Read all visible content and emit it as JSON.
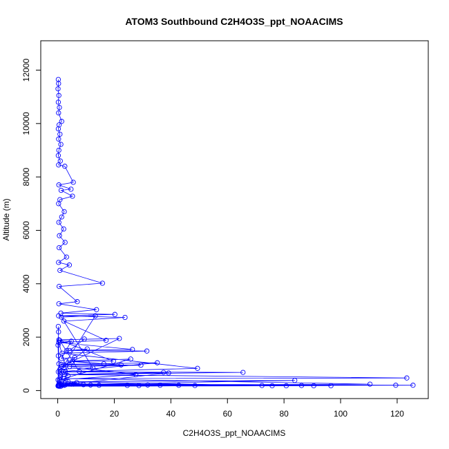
{
  "chart_data": {
    "type": "line",
    "title": "ATOM3 Southbound C2H4O3S_ppt_NOAACIMS",
    "xlabel": "C2H4O3S_ppt_NOAACIMS",
    "ylabel": "Altitude (m)",
    "xlim": [
      -6,
      131
    ],
    "ylim": [
      -300,
      13100
    ],
    "xticks": [
      0,
      20,
      40,
      60,
      80,
      100,
      120
    ],
    "yticks": [
      0,
      2000,
      4000,
      6000,
      8000,
      10000,
      12000
    ],
    "grid": false,
    "legend": "none",
    "series_color": "#0000ff",
    "marker": "open-circle",
    "series": [
      {
        "name": "",
        "points": [
          [
            0.2,
            11650
          ],
          [
            0.3,
            11500
          ],
          [
            0.1,
            11300
          ],
          [
            0.4,
            11050
          ],
          [
            0.2,
            10800
          ],
          [
            0.6,
            10600
          ],
          [
            0.3,
            10400
          ],
          [
            1.4,
            10080
          ],
          [
            0.5,
            9950
          ],
          [
            0.2,
            9800
          ],
          [
            0.8,
            9600
          ],
          [
            0.3,
            9420
          ],
          [
            1.1,
            9220
          ],
          [
            0.4,
            9000
          ],
          [
            0.2,
            8800
          ],
          [
            0.9,
            8600
          ],
          [
            0.3,
            8450
          ],
          [
            2.5,
            8400
          ],
          [
            5.5,
            7800
          ],
          [
            0.4,
            7700
          ],
          [
            4.7,
            7540
          ],
          [
            1.2,
            7500
          ],
          [
            5.2,
            7280
          ],
          [
            0.8,
            7150
          ],
          [
            0.3,
            7000
          ],
          [
            2.3,
            6700
          ],
          [
            1.4,
            6500
          ],
          [
            0.4,
            6300
          ],
          [
            2.1,
            6050
          ],
          [
            0.6,
            5800
          ],
          [
            2.6,
            5550
          ],
          [
            0.5,
            5350
          ],
          [
            3.1,
            5000
          ],
          [
            0.3,
            4800
          ],
          [
            4.1,
            4700
          ],
          [
            0.8,
            4500
          ],
          [
            15.8,
            4020
          ],
          [
            0.5,
            3900
          ],
          [
            6.9,
            3330
          ],
          [
            0.4,
            3250
          ],
          [
            13.7,
            3030
          ],
          [
            1.1,
            2900
          ],
          [
            20.2,
            2850
          ],
          [
            0.3,
            2800
          ],
          [
            23.8,
            2740
          ],
          [
            2.2,
            2600
          ],
          [
            17.1,
            1880
          ],
          [
            0.4,
            1800
          ],
          [
            26.4,
            1540
          ],
          [
            3.2,
            1500
          ],
          [
            31.5,
            1480
          ],
          [
            1.6,
            1400
          ],
          [
            49.4,
            830
          ],
          [
            0.8,
            700
          ],
          [
            65.5,
            680
          ],
          [
            2.4,
            600
          ],
          [
            123.4,
            470
          ],
          [
            2.1,
            450
          ],
          [
            110.4,
            240
          ],
          [
            1.5,
            200
          ],
          [
            119.5,
            200
          ],
          [
            0.7,
            180
          ],
          [
            125.6,
            200
          ],
          [
            3.4,
            250
          ],
          [
            80.8,
            180
          ],
          [
            1.1,
            160
          ],
          [
            96.6,
            180
          ],
          [
            2.6,
            210
          ],
          [
            90.5,
            180
          ],
          [
            4.8,
            240
          ],
          [
            86.2,
            190
          ],
          [
            1.9,
            220
          ],
          [
            83.8,
            380
          ],
          [
            3.7,
            330
          ],
          [
            75.8,
            180
          ],
          [
            0.5,
            160
          ],
          [
            72.2,
            190
          ],
          [
            5.6,
            240
          ],
          [
            48.5,
            190
          ],
          [
            2.3,
            200
          ],
          [
            42.8,
            200
          ],
          [
            1.2,
            210
          ],
          [
            39.2,
            660
          ],
          [
            0.9,
            600
          ],
          [
            37.4,
            680
          ],
          [
            2.7,
            720
          ],
          [
            35.2,
            1040
          ],
          [
            1.3,
            980
          ],
          [
            29.4,
            950
          ],
          [
            4.2,
            900
          ],
          [
            27.6,
            600
          ],
          [
            0.6,
            400
          ],
          [
            25.8,
            1180
          ],
          [
            3.0,
            1100
          ],
          [
            22.4,
            960
          ],
          [
            1.4,
            900
          ],
          [
            21.8,
            1950
          ],
          [
            0.4,
            1900
          ],
          [
            19.7,
            1100
          ],
          [
            5.2,
            1100
          ],
          [
            16.3,
            1000
          ],
          [
            2.2,
            950
          ],
          [
            13.3,
            2800
          ],
          [
            1.3,
            2750
          ],
          [
            12.4,
            850
          ],
          [
            0.8,
            800
          ],
          [
            10.4,
            1560
          ],
          [
            4.2,
            1500
          ],
          [
            9.4,
            1930
          ],
          [
            0.7,
            1880
          ],
          [
            7.6,
            720
          ],
          [
            2.0,
            700
          ],
          [
            6.0,
            1240
          ],
          [
            1.3,
            1200
          ],
          [
            4.8,
            1850
          ],
          [
            0.4,
            1800
          ],
          [
            3.6,
            560
          ],
          [
            0.9,
            500
          ],
          [
            2.8,
            360
          ],
          [
            0.5,
            300
          ],
          [
            14.6,
            200
          ],
          [
            0.2,
            180
          ],
          [
            11.6,
            210
          ],
          [
            0.3,
            190
          ],
          [
            31.8,
            210
          ],
          [
            0.6,
            190
          ],
          [
            28.7,
            190
          ],
          [
            0.1,
            170
          ],
          [
            36.2,
            200
          ],
          [
            0.4,
            210
          ],
          [
            24.6,
            195
          ],
          [
            0.3,
            180
          ],
          [
            9.1,
            220
          ],
          [
            0.2,
            200
          ],
          [
            6.7,
            300
          ],
          [
            0.5,
            250
          ],
          [
            0.2,
            2400
          ],
          [
            0.3,
            2200
          ],
          [
            0.1,
            1700
          ],
          [
            0.2,
            1300
          ],
          [
            0.4,
            1000
          ],
          [
            0.2,
            700
          ],
          [
            0.1,
            400
          ],
          [
            0.3,
            200
          ]
        ]
      }
    ]
  }
}
